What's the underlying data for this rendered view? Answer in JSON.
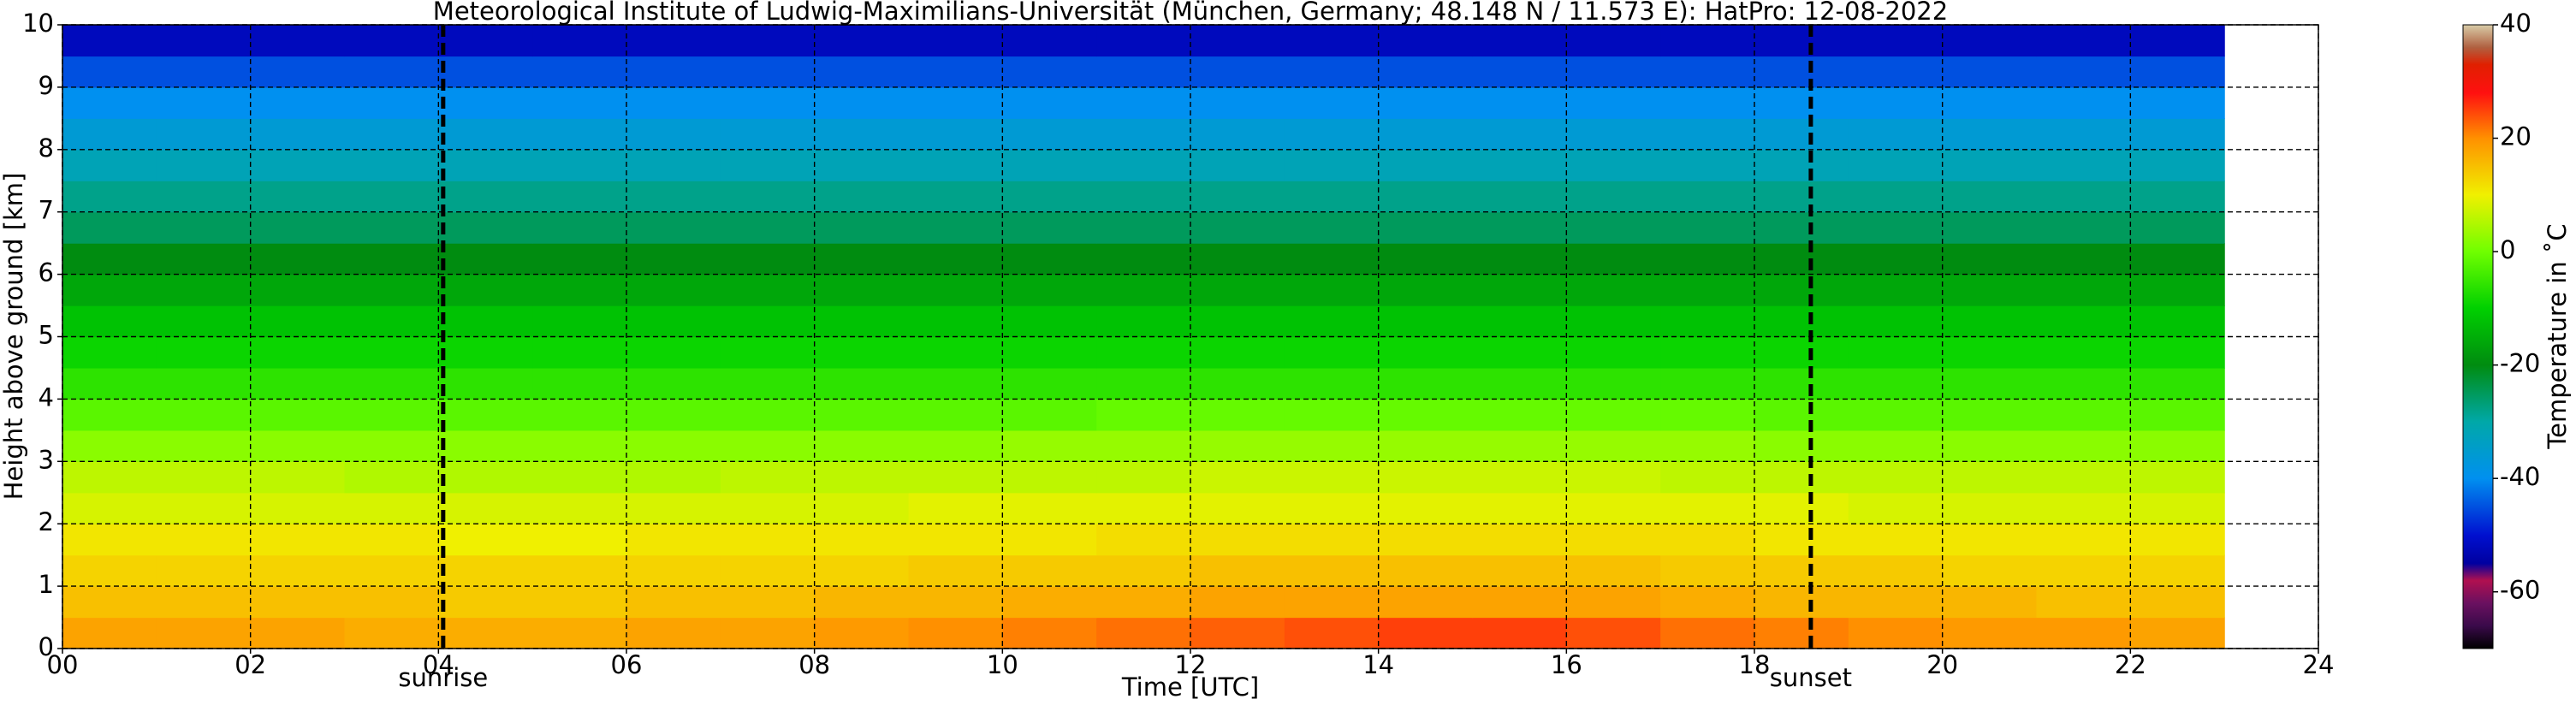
{
  "chart_data": {
    "type": "heatmap",
    "title": "Meteorological Institute of Ludwig-Maximilians-Universität (München, Germany; 48.148 N / 11.573 E):    HatPro: 12-08-2022",
    "xlabel": "Time [UTC]",
    "ylabel": "Height above ground [km]",
    "colorbar_label": "Temperature in ˚C",
    "xlim": [
      0,
      24
    ],
    "ylim": [
      0,
      10
    ],
    "clim": [
      -70,
      40
    ],
    "xticks": [
      {
        "value": 0,
        "label": "00"
      },
      {
        "value": 2,
        "label": "02"
      },
      {
        "value": 4,
        "label": "04"
      },
      {
        "value": 6,
        "label": "06"
      },
      {
        "value": 8,
        "label": "08"
      },
      10,
      12,
      14,
      16,
      18,
      20,
      22,
      24
    ],
    "yticks": [
      0,
      1,
      2,
      3,
      4,
      5,
      6,
      7,
      8,
      9,
      10
    ],
    "cticks": [
      -60,
      -40,
      -20,
      0,
      20,
      40
    ],
    "grid": true,
    "annotations": [
      {
        "label": "sunrise",
        "x": 4.05
      },
      {
        "label": "sunset",
        "x": 18.6
      }
    ],
    "x_edges": [
      0,
      1,
      2,
      3,
      4,
      5,
      6,
      7,
      8,
      9,
      10,
      11,
      12,
      13,
      14,
      15,
      16,
      17,
      18,
      19,
      20,
      21,
      22,
      23
    ],
    "y_edges": [
      0,
      0.5,
      1,
      1.5,
      2,
      2.5,
      3,
      3.5,
      4,
      4.5,
      5,
      5.5,
      6,
      6.5,
      7,
      7.5,
      8,
      8.5,
      9,
      9.5,
      10
    ],
    "colorscale": [
      [
        -70,
        "#000000"
      ],
      [
        -66,
        "#3a0a4a"
      ],
      [
        -62,
        "#6a1060"
      ],
      [
        -58,
        "#b01050"
      ],
      [
        -55,
        "#0000a0"
      ],
      [
        -50,
        "#0010d0"
      ],
      [
        -40,
        "#0090f0"
      ],
      [
        -30,
        "#00a8a8"
      ],
      [
        -20,
        "#008c10"
      ],
      [
        -10,
        "#00d000"
      ],
      [
        0,
        "#70ff00"
      ],
      [
        10,
        "#f0f000"
      ],
      [
        20,
        "#ff9000"
      ],
      [
        28,
        "#ff1010"
      ],
      [
        33,
        "#e02000"
      ],
      [
        36,
        "#b06040"
      ],
      [
        40,
        "#d8cca8"
      ]
    ],
    "z": [
      [
        18,
        18,
        18,
        17,
        17,
        17,
        18,
        18,
        19,
        20,
        21,
        22,
        23,
        24,
        25,
        25,
        24,
        22,
        21,
        20,
        19,
        19,
        18
      ],
      [
        15,
        15,
        15,
        15,
        14,
        14,
        15,
        15,
        16,
        16,
        17,
        17,
        18,
        18,
        18,
        18,
        18,
        17,
        16,
        16,
        16,
        15,
        15
      ],
      [
        13,
        13,
        13,
        13,
        13,
        13,
        13,
        13,
        13,
        14,
        14,
        14,
        15,
        15,
        15,
        15,
        15,
        14,
        14,
        14,
        13,
        13,
        13
      ],
      [
        11,
        11,
        11,
        11,
        10,
        10,
        11,
        11,
        11,
        11,
        11,
        12,
        12,
        12,
        12,
        12,
        12,
        12,
        11,
        11,
        11,
        11,
        11
      ],
      [
        8,
        8,
        8,
        8,
        8,
        8,
        8,
        8,
        8,
        9,
        9,
        9,
        9,
        9,
        9,
        9,
        9,
        9,
        9,
        8,
        8,
        8,
        8
      ],
      [
        6,
        6,
        6,
        5,
        5,
        5,
        5,
        6,
        6,
        6,
        6,
        6,
        7,
        7,
        7,
        7,
        7,
        6,
        6,
        6,
        6,
        6,
        6
      ],
      [
        2,
        2,
        2,
        2,
        2,
        2,
        2,
        2,
        2,
        2,
        3,
        3,
        3,
        3,
        3,
        3,
        3,
        3,
        2,
        2,
        2,
        2,
        2
      ],
      [
        -2,
        -2,
        -2,
        -2,
        -2,
        -2,
        -2,
        -2,
        -2,
        -2,
        -2,
        -1,
        -1,
        -1,
        -1,
        -1,
        -1,
        -1,
        -2,
        -2,
        -2,
        -2,
        -2
      ],
      [
        -6,
        -6,
        -6,
        -6,
        -6,
        -6,
        -6,
        -6,
        -6,
        -6,
        -6,
        -6,
        -6,
        -6,
        -6,
        -6,
        -6,
        -6,
        -6,
        -6,
        -6,
        -6,
        -6
      ],
      [
        -9,
        -9,
        -9,
        -9,
        -9,
        -9,
        -9,
        -9,
        -9,
        -9,
        -9,
        -9,
        -9,
        -9,
        -9,
        -9,
        -9,
        -9,
        -9,
        -9,
        -9,
        -9,
        -9
      ],
      [
        -12,
        -12,
        -12,
        -12,
        -12,
        -12,
        -12,
        -12,
        -12,
        -12,
        -12,
        -12,
        -12,
        -12,
        -12,
        -12,
        -12,
        -12,
        -12,
        -12,
        -12,
        -12,
        -12
      ],
      [
        -16,
        -16,
        -16,
        -16,
        -16,
        -16,
        -16,
        -16,
        -16,
        -16,
        -16,
        -16,
        -16,
        -16,
        -16,
        -16,
        -16,
        -16,
        -16,
        -16,
        -16,
        -16,
        -16
      ],
      [
        -20,
        -20,
        -20,
        -20,
        -20,
        -20,
        -20,
        -20,
        -20,
        -20,
        -20,
        -20,
        -20,
        -20,
        -20,
        -20,
        -20,
        -20,
        -20,
        -20,
        -20,
        -20,
        -20
      ],
      [
        -25,
        -25,
        -25,
        -25,
        -25,
        -25,
        -25,
        -25,
        -25,
        -25,
        -25,
        -25,
        -25,
        -25,
        -25,
        -25,
        -25,
        -25,
        -25,
        -25,
        -25,
        -25,
        -25
      ],
      [
        -28,
        -28,
        -28,
        -28,
        -28,
        -28,
        -28,
        -28,
        -28,
        -28,
        -28,
        -28,
        -28,
        -28,
        -28,
        -28,
        -28,
        -28,
        -28,
        -28,
        -28,
        -28,
        -28
      ],
      [
        -32,
        -32,
        -32,
        -32,
        -32,
        -32,
        -32,
        -32,
        -32,
        -32,
        -32,
        -32,
        -32,
        -32,
        -32,
        -32,
        -32,
        -32,
        -32,
        -32,
        -32,
        -32,
        -32
      ],
      [
        -36,
        -36,
        -36,
        -36,
        -36,
        -36,
        -36,
        -36,
        -36,
        -36,
        -36,
        -36,
        -36,
        -36,
        -36,
        -36,
        -36,
        -36,
        -36,
        -36,
        -36,
        -36,
        -36
      ],
      [
        -40,
        -40,
        -40,
        -40,
        -40,
        -40,
        -40,
        -40,
        -40,
        -40,
        -40,
        -40,
        -40,
        -40,
        -40,
        -40,
        -40,
        -40,
        -40,
        -40,
        -40,
        -40,
        -40
      ],
      [
        -45,
        -45,
        -45,
        -45,
        -45,
        -45,
        -45,
        -45,
        -45,
        -45,
        -45,
        -45,
        -45,
        -45,
        -45,
        -45,
        -45,
        -45,
        -45,
        -45,
        -45,
        -45,
        -45
      ],
      [
        -52,
        -52,
        -52,
        -52,
        -52,
        -52,
        -52,
        -52,
        -52,
        -52,
        -52,
        -52,
        -52,
        -52,
        -52,
        -52,
        -52,
        -52,
        -52,
        -52,
        -52,
        -52,
        -52
      ]
    ]
  }
}
